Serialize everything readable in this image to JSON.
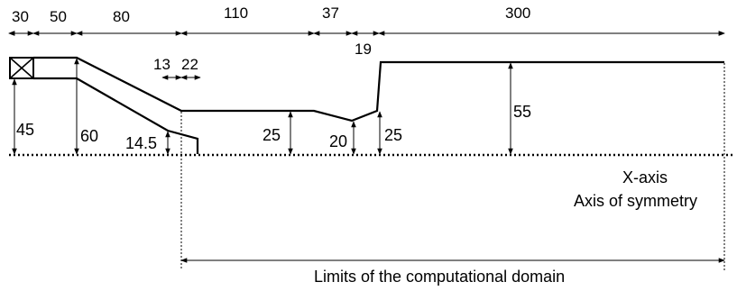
{
  "top_dimensions": {
    "d30": "30",
    "d50": "50",
    "d80": "80",
    "d110": "110",
    "d37": "37",
    "d300": "300",
    "d19": "19",
    "d13": "13",
    "d22": "22"
  },
  "heights": {
    "h45": "45",
    "h60": "60",
    "h14_5": "14.5",
    "h25a": "25",
    "h20": "20",
    "h25b": "25",
    "h55": "55"
  },
  "axis": {
    "x_axis": "X-axis",
    "symmetry": "Axis of symmetry"
  },
  "domain": {
    "limits_label": "Limits of the computational domain"
  }
}
